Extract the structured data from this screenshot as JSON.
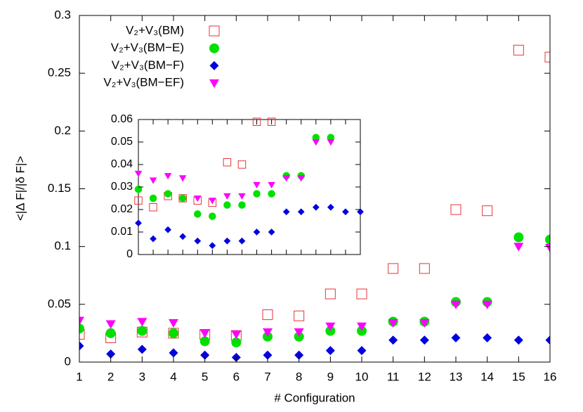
{
  "chart_data": {
    "type": "scatter",
    "xlabel": "# Configuration",
    "ylabel": "<|Δ F|/|δ F|>",
    "x": [
      1,
      2,
      3,
      4,
      5,
      6,
      7,
      8,
      9,
      10,
      11,
      12,
      13,
      14,
      15,
      16
    ],
    "xlim": [
      1,
      16
    ],
    "xticks": [
      1,
      2,
      3,
      4,
      5,
      6,
      7,
      8,
      9,
      10,
      11,
      12,
      13,
      14,
      15,
      16
    ],
    "ylim": [
      0,
      0.3
    ],
    "yticks": [
      0,
      0.05,
      0.1,
      0.15,
      0.2,
      0.25,
      0.3
    ],
    "legend": "top-left",
    "series": [
      {
        "name": "V₂+V₃(BM)",
        "color": "#e8333a",
        "marker": "open-square",
        "values": [
          0.024,
          0.021,
          0.026,
          0.025,
          0.024,
          0.023,
          0.041,
          0.04,
          0.059,
          0.059,
          0.081,
          0.081,
          0.132,
          0.131,
          0.27,
          0.264
        ]
      },
      {
        "name": "V₂+V₃(BM−E)",
        "color": "#00e000",
        "marker": "circle",
        "values": [
          0.029,
          0.025,
          0.027,
          0.025,
          0.018,
          0.017,
          0.022,
          0.022,
          0.027,
          0.027,
          0.035,
          0.035,
          0.052,
          0.052,
          0.108,
          0.106
        ]
      },
      {
        "name": "V₂+V₃(BM−F)",
        "color": "#0000e0",
        "marker": "diamond",
        "values": [
          0.014,
          0.007,
          0.011,
          0.008,
          0.006,
          0.004,
          0.006,
          0.006,
          0.01,
          0.01,
          0.019,
          0.019,
          0.021,
          0.021,
          0.019,
          0.019
        ]
      },
      {
        "name": "V₂+V₃(BM−EF)",
        "color": "#ff00ff",
        "marker": "triangle-down",
        "values": [
          0.036,
          0.033,
          0.035,
          0.034,
          0.025,
          0.024,
          0.026,
          0.026,
          0.031,
          0.031,
          0.034,
          0.034,
          0.05,
          0.05,
          0.1,
          0.099
        ]
      }
    ],
    "inset": {
      "xlim": [
        1,
        16
      ],
      "ylim": [
        0,
        0.06
      ],
      "yticks": [
        0,
        0.01,
        0.02,
        0.03,
        0.04,
        0.05,
        0.06
      ]
    }
  }
}
